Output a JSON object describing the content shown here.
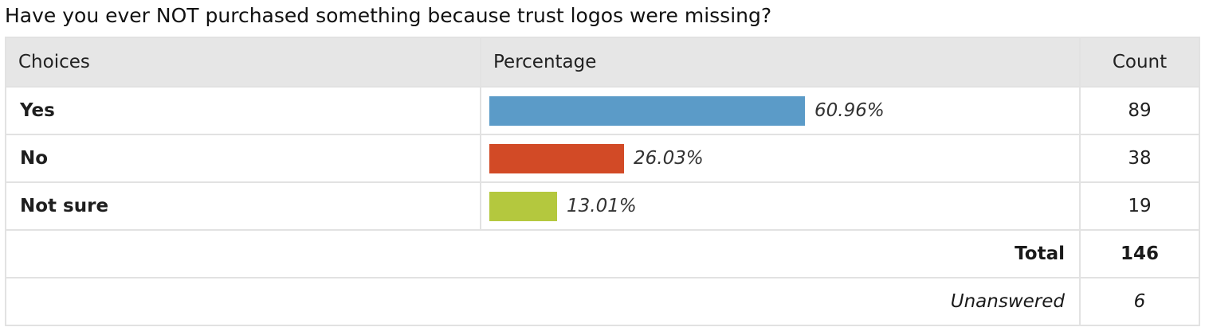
{
  "question": "Have you ever NOT purchased something because trust logos were missing?",
  "columns": {
    "choices": "Choices",
    "percentage": "Percentage",
    "count": "Count"
  },
  "rows": [
    {
      "label": "Yes",
      "percent_label": "60.96%",
      "count": "89",
      "color": "#5b9bc8"
    },
    {
      "label": "No",
      "percent_label": "26.03%",
      "count": "38",
      "color": "#d24a26"
    },
    {
      "label": "Not sure",
      "percent_label": "13.01%",
      "count": "19",
      "color": "#b4c83e"
    }
  ],
  "total": {
    "label": "Total",
    "value": "146"
  },
  "unanswered": {
    "label": "Unanswered",
    "value": "6"
  },
  "chart_data": {
    "type": "bar",
    "orientation": "horizontal",
    "categories": [
      "Yes",
      "No",
      "Not sure"
    ],
    "values": [
      60.96,
      26.03,
      13.01
    ],
    "counts": [
      89,
      38,
      19
    ],
    "title": "Have you ever NOT purchased something because trust logos were missing?",
    "xlim": [
      0,
      100
    ],
    "grid": false
  }
}
